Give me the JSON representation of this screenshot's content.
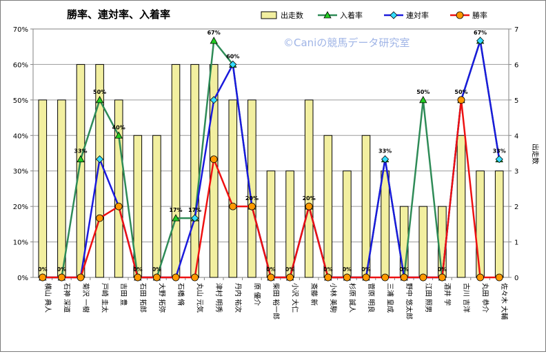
{
  "chart_data": {
    "type": "bar",
    "title": "勝率、連対率、入着率",
    "watermark": "©Caniの競馬データ研究室",
    "y2label": "出走数",
    "categories": [
      "横山 典人",
      "石神 深道",
      "菊沢 一樹",
      "戸崎 圭太",
      "吉田 豊",
      "石田 拓郎",
      "大野 拓弥",
      "石橋 脩",
      "丸山 元気",
      "津村 明秀",
      "丹内 祐次",
      "原 優介",
      "柴田 裕一郎",
      "小沢 大仁",
      "斎藤 新",
      "小林 美駒",
      "杉原 誠人",
      "菅原 明良",
      "三浦 皇成",
      "野中 悠太郎",
      "江田 照男",
      "酒井 学",
      "古川 吉洋",
      "丸田 恭介",
      "佐々木 大輔"
    ],
    "series": [
      {
        "name": "出走数",
        "type": "bar",
        "axis": "right",
        "color": "#f2efa0",
        "values": [
          5,
          5,
          6,
          6,
          5,
          4,
          4,
          6,
          6,
          6,
          5,
          5,
          3,
          3,
          5,
          4,
          3,
          4,
          3,
          2,
          2,
          2,
          4,
          3,
          3
        ]
      },
      {
        "name": "入着率",
        "type": "line",
        "axis": "left",
        "color": "#2e8b57",
        "marker": "triangle",
        "marker_color": "#22cc22",
        "values": [
          0,
          0,
          33.3,
          50,
          40,
          0,
          0,
          16.7,
          16.7,
          66.7,
          60,
          20,
          0,
          0,
          20,
          0,
          0,
          0,
          33.3,
          0,
          50,
          0,
          50,
          66.7,
          33.3
        ]
      },
      {
        "name": "連対率",
        "type": "line",
        "axis": "left",
        "color": "#1a1adc",
        "marker": "diamond",
        "marker_color": "#33ddff",
        "values": [
          0,
          0,
          0,
          33.3,
          20,
          0,
          0,
          0,
          16.7,
          50,
          60,
          20,
          0,
          0,
          20,
          0,
          0,
          0,
          33.3,
          0,
          0,
          0,
          50,
          66.7,
          33.3
        ]
      },
      {
        "name": "勝率",
        "type": "line",
        "axis": "left",
        "color": "#ee1111",
        "marker": "circle",
        "marker_color": "#ff9900",
        "values": [
          0,
          0,
          0,
          16.7,
          20,
          0,
          0,
          0,
          0,
          33.3,
          20,
          20,
          0,
          0,
          20,
          0,
          0,
          0,
          0,
          0,
          0,
          0,
          50,
          0,
          0
        ]
      }
    ],
    "ylim": [
      0,
      70
    ],
    "yticks": [
      "0%",
      "10%",
      "20%",
      "30%",
      "40%",
      "50%",
      "60%",
      "70%"
    ],
    "y2lim": [
      0,
      7
    ],
    "y2ticks": [
      "0",
      "1",
      "2",
      "3",
      "4",
      "5",
      "6",
      "7"
    ],
    "data_labels": [
      {
        "index": 0,
        "text": "0%"
      },
      {
        "index": 1,
        "text": "0%"
      },
      {
        "index": 2,
        "text": "33%"
      },
      {
        "index": 3,
        "text": "50%"
      },
      {
        "index": 4,
        "text": "40%"
      },
      {
        "index": 5,
        "text": "0%"
      },
      {
        "index": 6,
        "text": "0%"
      },
      {
        "index": 7,
        "text": "17%"
      },
      {
        "index": 8,
        "text": "17%"
      },
      {
        "index": 9,
        "text": "67%"
      },
      {
        "index": 10,
        "text": "60%"
      },
      {
        "index": 11,
        "text": "20%"
      },
      {
        "index": 12,
        "text": "0%"
      },
      {
        "index": 13,
        "text": "0%"
      },
      {
        "index": 14,
        "text": "20%"
      },
      {
        "index": 15,
        "text": "0%"
      },
      {
        "index": 16,
        "text": "0%"
      },
      {
        "index": 17,
        "text": "0%"
      },
      {
        "index": 18,
        "text": "33%"
      },
      {
        "index": 19,
        "text": "0%"
      },
      {
        "index": 20,
        "text": "50%"
      },
      {
        "index": 21,
        "text": "0%"
      },
      {
        "index": 22,
        "text": "50%"
      },
      {
        "index": 23,
        "text": "67%"
      },
      {
        "index": 24,
        "text": "33%"
      }
    ],
    "grid": true,
    "legend": "top-right"
  }
}
